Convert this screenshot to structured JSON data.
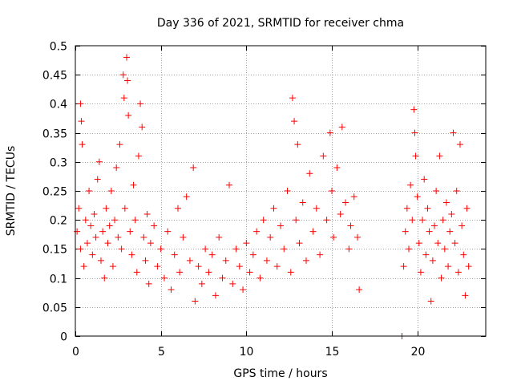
{
  "chart_data": {
    "type": "scatter",
    "title": "Day 336 of 2021, SRMTID for receiver chma",
    "xlabel": "GPS time / hours",
    "ylabel": "SRMTID / TECUs",
    "xlim": [
      0,
      24
    ],
    "ylim": [
      0,
      0.5
    ],
    "xticks": [
      0,
      5,
      10,
      15,
      20
    ],
    "xtick_labels": [
      "0",
      "5",
      "10",
      "15",
      "20"
    ],
    "yticks": [
      0,
      0.05,
      0.1,
      0.15,
      0.2,
      0.25,
      0.3,
      0.35,
      0.4,
      0.45,
      0.5
    ],
    "ytick_labels": [
      "0",
      "0.05",
      "0.1",
      "0.15",
      "0.2",
      "0.25",
      "0.3",
      "0.35",
      "0.4",
      "0.45",
      "0.5"
    ],
    "grid": true,
    "marker": "plus",
    "color": "#ff0000",
    "series": [
      {
        "name": "SRMTID",
        "points": [
          [
            0.1,
            0.18
          ],
          [
            0.2,
            0.22
          ],
          [
            0.3,
            0.15
          ],
          [
            0.3,
            0.4
          ],
          [
            0.35,
            0.37
          ],
          [
            0.4,
            0.33
          ],
          [
            0.5,
            0.12
          ],
          [
            0.6,
            0.2
          ],
          [
            0.7,
            0.16
          ],
          [
            0.8,
            0.25
          ],
          [
            0.9,
            0.19
          ],
          [
            1.0,
            0.14
          ],
          [
            1.1,
            0.21
          ],
          [
            1.2,
            0.17
          ],
          [
            1.3,
            0.27
          ],
          [
            1.4,
            0.3
          ],
          [
            1.5,
            0.13
          ],
          [
            1.6,
            0.18
          ],
          [
            1.7,
            0.1
          ],
          [
            1.8,
            0.22
          ],
          [
            1.9,
            0.16
          ],
          [
            2.0,
            0.19
          ],
          [
            2.1,
            0.25
          ],
          [
            2.2,
            0.12
          ],
          [
            2.3,
            0.2
          ],
          [
            2.4,
            0.29
          ],
          [
            2.5,
            0.17
          ],
          [
            2.6,
            0.33
          ],
          [
            2.7,
            0.15
          ],
          [
            2.8,
            0.45
          ],
          [
            2.85,
            0.41
          ],
          [
            2.9,
            0.22
          ],
          [
            3.0,
            0.48
          ],
          [
            3.05,
            0.44
          ],
          [
            3.1,
            0.38
          ],
          [
            3.2,
            0.18
          ],
          [
            3.3,
            0.14
          ],
          [
            3.4,
            0.26
          ],
          [
            3.5,
            0.2
          ],
          [
            3.6,
            0.11
          ],
          [
            3.7,
            0.31
          ],
          [
            3.8,
            0.4
          ],
          [
            3.9,
            0.36
          ],
          [
            4.0,
            0.17
          ],
          [
            4.1,
            0.13
          ],
          [
            4.2,
            0.21
          ],
          [
            4.3,
            0.09
          ],
          [
            4.4,
            0.16
          ],
          [
            4.6,
            0.19
          ],
          [
            4.8,
            0.12
          ],
          [
            5.0,
            0.15
          ],
          [
            5.2,
            0.1
          ],
          [
            5.4,
            0.18
          ],
          [
            5.6,
            0.08
          ],
          [
            5.8,
            0.14
          ],
          [
            6.0,
            0.22
          ],
          [
            6.1,
            0.11
          ],
          [
            6.3,
            0.17
          ],
          [
            6.5,
            0.24
          ],
          [
            6.7,
            0.13
          ],
          [
            6.9,
            0.29
          ],
          [
            7.0,
            0.06
          ],
          [
            7.2,
            0.12
          ],
          [
            7.4,
            0.09
          ],
          [
            7.6,
            0.15
          ],
          [
            7.8,
            0.11
          ],
          [
            8.0,
            0.14
          ],
          [
            8.2,
            0.07
          ],
          [
            8.4,
            0.17
          ],
          [
            8.6,
            0.1
          ],
          [
            8.8,
            0.13
          ],
          [
            9.0,
            0.26
          ],
          [
            9.2,
            0.09
          ],
          [
            9.4,
            0.15
          ],
          [
            9.6,
            0.12
          ],
          [
            9.8,
            0.08
          ],
          [
            10.0,
            0.16
          ],
          [
            10.2,
            0.11
          ],
          [
            10.4,
            0.14
          ],
          [
            10.6,
            0.18
          ],
          [
            10.8,
            0.1
          ],
          [
            11.0,
            0.2
          ],
          [
            11.2,
            0.13
          ],
          [
            11.4,
            0.17
          ],
          [
            11.6,
            0.22
          ],
          [
            11.8,
            0.12
          ],
          [
            12.0,
            0.19
          ],
          [
            12.2,
            0.15
          ],
          [
            12.4,
            0.25
          ],
          [
            12.6,
            0.11
          ],
          [
            12.7,
            0.41
          ],
          [
            12.8,
            0.37
          ],
          [
            12.9,
            0.2
          ],
          [
            13.0,
            0.33
          ],
          [
            13.1,
            0.16
          ],
          [
            13.3,
            0.23
          ],
          [
            13.5,
            0.13
          ],
          [
            13.7,
            0.28
          ],
          [
            13.9,
            0.18
          ],
          [
            14.1,
            0.22
          ],
          [
            14.3,
            0.14
          ],
          [
            14.5,
            0.31
          ],
          [
            14.7,
            0.2
          ],
          [
            14.9,
            0.35
          ],
          [
            15.0,
            0.25
          ],
          [
            15.1,
            0.17
          ],
          [
            15.3,
            0.29
          ],
          [
            15.5,
            0.21
          ],
          [
            15.6,
            0.36
          ],
          [
            15.8,
            0.23
          ],
          [
            16.0,
            0.15
          ],
          [
            16.1,
            0.19
          ],
          [
            16.3,
            0.24
          ],
          [
            16.5,
            0.17
          ],
          [
            16.6,
            0.08
          ],
          [
            19.1,
            0.0
          ],
          [
            19.2,
            0.12
          ],
          [
            19.3,
            0.18
          ],
          [
            19.4,
            0.22
          ],
          [
            19.5,
            0.15
          ],
          [
            19.6,
            0.26
          ],
          [
            19.7,
            0.2
          ],
          [
            19.8,
            0.39
          ],
          [
            19.85,
            0.35
          ],
          [
            19.9,
            0.31
          ],
          [
            20.0,
            0.24
          ],
          [
            20.1,
            0.16
          ],
          [
            20.2,
            0.11
          ],
          [
            20.3,
            0.2
          ],
          [
            20.4,
            0.27
          ],
          [
            20.5,
            0.14
          ],
          [
            20.6,
            0.22
          ],
          [
            20.7,
            0.18
          ],
          [
            20.8,
            0.06
          ],
          [
            20.9,
            0.13
          ],
          [
            21.0,
            0.19
          ],
          [
            21.1,
            0.25
          ],
          [
            21.2,
            0.16
          ],
          [
            21.3,
            0.31
          ],
          [
            21.4,
            0.1
          ],
          [
            21.5,
            0.2
          ],
          [
            21.6,
            0.15
          ],
          [
            21.7,
            0.23
          ],
          [
            21.8,
            0.12
          ],
          [
            21.9,
            0.18
          ],
          [
            22.0,
            0.21
          ],
          [
            22.1,
            0.35
          ],
          [
            22.2,
            0.16
          ],
          [
            22.3,
            0.25
          ],
          [
            22.4,
            0.11
          ],
          [
            22.5,
            0.33
          ],
          [
            22.6,
            0.19
          ],
          [
            22.7,
            0.14
          ],
          [
            22.8,
            0.07
          ],
          [
            22.9,
            0.22
          ],
          [
            23.0,
            0.12
          ]
        ]
      }
    ]
  }
}
